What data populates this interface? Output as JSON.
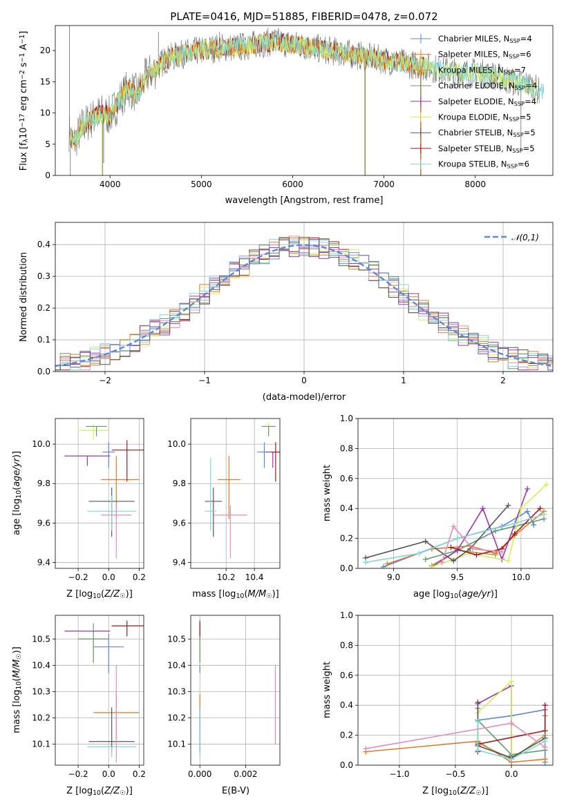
{
  "colors": {
    "chabrier_miles": "#5b87d6",
    "salpeter_miles": "#e07a22",
    "kroupa_miles": "#b0a042",
    "chabrier_elodie": "#5f9a6e",
    "salpeter_elodie": "#9b34b0",
    "kroupa_elodie": "#d6ee5a",
    "chabrier_stelib": "#5a5252",
    "salpeter_stelib": "#a31818",
    "kroupa_stelib": "#7fd6df",
    "extra_pink": "#e58bbb",
    "normal_curve": "#5b87d6"
  },
  "chart_data": [
    {
      "id": "spectrum",
      "type": "line",
      "title": "PLATE=0416, MJD=51885, FIBERID=0478, z=0.072",
      "xlabel": "wavelength [Angstrom, rest frame]",
      "ylabel": "Flux [f",
      "ylabel_parts": {
        "sub": "λ",
        "main": "10",
        "sup1": "−17",
        "rest": " erg cm",
        "sup2": "−2",
        "rest2": " s",
        "sup3": "−1",
        "rest3": " A",
        "sup4": "−1",
        "end": "]"
      },
      "xlim": [
        3400,
        8850
      ],
      "ylim": [
        0,
        24
      ],
      "xticks": [
        4000,
        5000,
        6000,
        7000,
        8000
      ],
      "yticks": [
        0,
        5,
        10,
        15,
        20
      ],
      "legend_position": "top-right",
      "legend": [
        {
          "label": "Chabrier MILES, N",
          "n": "4",
          "color_key": "chabrier_miles"
        },
        {
          "label": "Salpeter MILES, N",
          "n": "6",
          "color_key": "salpeter_miles"
        },
        {
          "label": "Kroupa MILES, N",
          "n": "7",
          "color_key": "kroupa_miles"
        },
        {
          "label": "Chabrier ELODIE, N",
          "n": "4",
          "color_key": "chabrier_elodie"
        },
        {
          "label": "Salpeter ELODIE, N",
          "n": "4",
          "color_key": "salpeter_elodie"
        },
        {
          "label": "Kroupa ELODIE, N",
          "n": "5",
          "color_key": "kroupa_elodie"
        },
        {
          "label": "Chabrier STELIB, N",
          "n": "5",
          "color_key": "chabrier_stelib"
        },
        {
          "label": "Salpeter STELIB, N",
          "n": "5",
          "color_key": "salpeter_stelib"
        },
        {
          "label": "Kroupa STELIB, N",
          "n": "6",
          "color_key": "kroupa_stelib"
        }
      ],
      "legend_sub": "SSP",
      "data_spectrum_anchors": [
        [
          3550,
          7
        ],
        [
          3600,
          5
        ],
        [
          3700,
          8
        ],
        [
          3800,
          9
        ],
        [
          3900,
          10
        ],
        [
          4000,
          9.5
        ],
        [
          4100,
          12
        ],
        [
          4200,
          14
        ],
        [
          4300,
          13
        ],
        [
          4400,
          16
        ],
        [
          4500,
          17
        ],
        [
          4600,
          18.5
        ],
        [
          4800,
          19.5
        ],
        [
          5000,
          20
        ],
        [
          5200,
          20.5
        ],
        [
          5400,
          20.5
        ],
        [
          5600,
          21
        ],
        [
          5800,
          21.5
        ],
        [
          6000,
          21
        ],
        [
          6200,
          20.5
        ],
        [
          6400,
          20
        ],
        [
          6600,
          19.5
        ],
        [
          6800,
          19
        ],
        [
          7000,
          18.5
        ],
        [
          7200,
          18
        ],
        [
          7400,
          17.5
        ],
        [
          7600,
          17
        ],
        [
          7800,
          16.5
        ],
        [
          8000,
          16.5
        ],
        [
          8200,
          16
        ],
        [
          8400,
          15
        ],
        [
          8600,
          14.5
        ],
        [
          8700,
          13.5
        ]
      ]
    },
    {
      "id": "residuals",
      "type": "bar",
      "xlabel": "(data-model)/error",
      "ylabel": "Normed distribution",
      "xlim": [
        -2.5,
        2.5
      ],
      "ylim": [
        0,
        0.47
      ],
      "xticks": [
        -2,
        -1,
        0,
        1,
        2
      ],
      "yticks": [
        0.0,
        0.1,
        0.2,
        0.3,
        0.4
      ],
      "grid": true,
      "legend_position": "top-right",
      "legend": [
        {
          "label": "𝒩(0,1)",
          "color_key": "normal_curve"
        }
      ],
      "bin_width": 0.1
    },
    {
      "id": "age_vs_Z",
      "type": "scatter",
      "xlabel": "Z [log",
      "xlabel_full": "Z [log₁₀(Z/Z☉)]",
      "ylabel_full": "age  [log₁₀(age/yr)]",
      "xlim": [
        -0.35,
        0.23
      ],
      "ylim": [
        9.37,
        10.13
      ],
      "xticks": [
        -0.2,
        0.0,
        0.2
      ],
      "yticks": [
        9.4,
        9.6,
        9.8,
        10.0
      ],
      "points": [
        {
          "x": 0.0,
          "y": 9.96,
          "xerr": 0.04,
          "yerr": [
            0.08,
            0.05
          ],
          "color_key": "chabrier_miles"
        },
        {
          "x": 0.05,
          "y": 9.82,
          "xerr": [
            0.1,
            0.15
          ],
          "yerr": [
            0.2,
            0.12
          ],
          "color_key": "salpeter_miles"
        },
        {
          "x": -0.1,
          "y": 10.07,
          "xerr": 0.1,
          "yerr": [
            0.05,
            0.03
          ],
          "color_key": "kroupa_elodie"
        },
        {
          "x": -0.08,
          "y": 10.09,
          "xerr": 0.07,
          "yerr": [
            0.05,
            0.0
          ],
          "color_key": "chabrier_elodie"
        },
        {
          "x": -0.14,
          "y": 9.94,
          "xerr": 0.15,
          "yerr": [
            0.05,
            0.0
          ],
          "color_key": "salpeter_elodie"
        },
        {
          "x": 0.02,
          "y": 9.71,
          "xerr": 0.15,
          "yerr": [
            0.18,
            0.07
          ],
          "color_key": "chabrier_stelib"
        },
        {
          "x": 0.12,
          "y": 9.97,
          "xerr": [
            0.1,
            0.15
          ],
          "yerr": [
            0.16,
            0.05
          ],
          "color_key": "salpeter_stelib"
        },
        {
          "x": 0.02,
          "y": 9.66,
          "xerr": 0.16,
          "yerr": [
            0.1,
            0.08
          ],
          "color_key": "kroupa_stelib"
        },
        {
          "x": 0.05,
          "y": 9.64,
          "xerr": 0.1,
          "yerr": [
            0.22,
            0.05
          ],
          "color_key": "extra_pink"
        }
      ]
    },
    {
      "id": "age_vs_mass",
      "type": "scatter",
      "xlabel_full": "mass [log₁₀(M/M☉)]",
      "xlim": [
        9.95,
        10.58
      ],
      "ylim": [
        9.37,
        10.13
      ],
      "xticks": [
        10.2,
        10.4
      ],
      "yticks": [
        9.4,
        9.6,
        9.8,
        10.0
      ],
      "points": [
        {
          "x": 10.47,
          "y": 9.96,
          "xerr": 0.05,
          "yerr": [
            0.08,
            0.05
          ],
          "color_key": "chabrier_miles"
        },
        {
          "x": 10.22,
          "y": 9.82,
          "xerr": 0.08,
          "yerr": [
            0.2,
            0.12
          ],
          "color_key": "salpeter_miles"
        },
        {
          "x": 10.5,
          "y": 10.09,
          "xerr": 0.05,
          "yerr": [
            0.05,
            0.02
          ],
          "color_key": "kroupa_elodie"
        },
        {
          "x": 10.5,
          "y": 10.09,
          "xerr": 0.05,
          "yerr": [
            0.05,
            0.0
          ],
          "color_key": "chabrier_elodie"
        },
        {
          "x": 10.53,
          "y": 9.96,
          "xerr": 0.05,
          "yerr": [
            0.08,
            0.0
          ],
          "color_key": "salpeter_elodie"
        },
        {
          "x": 10.11,
          "y": 9.71,
          "xerr": 0.06,
          "yerr": [
            0.18,
            0.07
          ],
          "color_key": "chabrier_stelib"
        },
        {
          "x": 10.55,
          "y": 9.96,
          "xerr": 0.03,
          "yerr": [
            0.15,
            0.05
          ],
          "color_key": "salpeter_stelib"
        },
        {
          "x": 10.09,
          "y": 9.66,
          "xerr": 0.04,
          "yerr": [
            0.1,
            0.27
          ],
          "color_key": "kroupa_stelib"
        },
        {
          "x": 10.23,
          "y": 9.64,
          "xerr": 0.12,
          "yerr": [
            0.22,
            0.05
          ],
          "color_key": "extra_pink"
        }
      ]
    },
    {
      "id": "mw_vs_age",
      "type": "line",
      "xlabel_full": "age  [log₁₀(age/yr)]",
      "ylabel": "mass weight",
      "xlim": [
        8.72,
        10.25
      ],
      "ylim": [
        0,
        1
      ],
      "xticks": [
        9.0,
        9.5,
        10.0
      ],
      "yticks": [
        0.0,
        0.2,
        0.4,
        0.6,
        0.8,
        1.0
      ],
      "series": [
        {
          "color_key": "chabrier_miles",
          "x": [
            8.92,
            9.5,
            9.85,
            10.05,
            10.1
          ],
          "y": [
            0.01,
            0.2,
            0.28,
            0.38,
            0.29
          ]
        },
        {
          "color_key": "salpeter_miles",
          "x": [
            8.95,
            9.3,
            9.6,
            9.8,
            9.95,
            10.18
          ],
          "y": [
            0.03,
            0.13,
            0.15,
            0.1,
            0.22,
            0.38
          ]
        },
        {
          "color_key": "kroupa_miles",
          "x": [
            9.3,
            9.5,
            9.8
          ],
          "y": [
            0.02,
            0.12,
            0.09
          ]
        },
        {
          "color_key": "chabrier_elodie",
          "x": [
            9.25,
            9.5,
            9.8,
            9.95,
            10.18
          ],
          "y": [
            0.06,
            0.12,
            0.25,
            0.28,
            0.33
          ]
        },
        {
          "color_key": "salpeter_elodie",
          "x": [
            9.3,
            9.5,
            9.7,
            9.85,
            10.05
          ],
          "y": [
            0.01,
            0.12,
            0.4,
            0.06,
            0.53
          ]
        },
        {
          "color_key": "kroupa_elodie",
          "x": [
            9.3,
            9.6,
            9.9,
            10.0,
            10.2
          ],
          "y": [
            0.01,
            0.1,
            0.05,
            0.4,
            0.56
          ]
        },
        {
          "color_key": "chabrier_stelib",
          "x": [
            8.78,
            9.25,
            9.47,
            9.6,
            9.9
          ],
          "y": [
            0.07,
            0.18,
            0.05,
            0.13,
            0.42
          ]
        },
        {
          "color_key": "salpeter_stelib",
          "x": [
            9.45,
            9.65,
            9.85,
            9.95,
            10.15
          ],
          "y": [
            0.14,
            0.09,
            0.13,
            0.23,
            0.4
          ]
        },
        {
          "color_key": "kroupa_stelib",
          "x": [
            8.78,
            9.2,
            9.5,
            9.95,
            10.18
          ],
          "y": [
            0.04,
            0.1,
            0.2,
            0.3,
            0.36
          ]
        },
        {
          "color_key": "extra_pink",
          "x": [
            9.38,
            9.47,
            9.62,
            9.85
          ],
          "y": [
            0.04,
            0.28,
            0.13,
            0.11
          ]
        }
      ]
    },
    {
      "id": "mass_vs_Z",
      "type": "scatter",
      "xlabel_full": "Z [log₁₀(Z/Z☉)]",
      "ylabel_full": "mass [log₁₀(M/M☉)]",
      "xlim": [
        -0.35,
        0.23
      ],
      "ylim": [
        10.02,
        10.59
      ],
      "xticks": [
        -0.2,
        0.0,
        0.2
      ],
      "yticks": [
        10.1,
        10.2,
        10.3,
        10.4,
        10.5
      ],
      "points": [
        {
          "x": 0.0,
          "y": 10.47,
          "xerr": 0.1,
          "yerr": [
            0.1,
            0.05
          ],
          "color_key": "chabrier_miles"
        },
        {
          "x": 0.05,
          "y": 10.22,
          "xerr": [
            0.15,
            0.15
          ],
          "yerr": [
            0.1,
            0.07
          ],
          "color_key": "salpeter_miles"
        },
        {
          "x": -0.1,
          "y": 10.5,
          "xerr": 0.1,
          "yerr": [
            0.1,
            0.0
          ],
          "color_key": "kroupa_elodie"
        },
        {
          "x": -0.1,
          "y": 10.5,
          "xerr": 0.1,
          "yerr": [
            0.09,
            0.06
          ],
          "color_key": "chabrier_elodie"
        },
        {
          "x": -0.14,
          "y": 10.53,
          "xerr": 0.15,
          "yerr": [
            0.0,
            0.0
          ],
          "color_key": "salpeter_elodie"
        },
        {
          "x": 0.02,
          "y": 10.11,
          "xerr": 0.15,
          "yerr": [
            0.04,
            0.13
          ],
          "color_key": "chabrier_stelib"
        },
        {
          "x": 0.12,
          "y": 10.55,
          "xerr": [
            0.1,
            0.15
          ],
          "yerr": [
            0.04,
            0.02
          ],
          "color_key": "salpeter_stelib"
        },
        {
          "x": 0.02,
          "y": 10.09,
          "xerr": 0.16,
          "yerr": [
            0.04,
            0.0
          ],
          "color_key": "kroupa_stelib"
        },
        {
          "x": 0.05,
          "y": 10.23,
          "xerr": 0.0,
          "yerr": [
            0.2,
            0.17
          ],
          "color_key": "extra_pink"
        }
      ]
    },
    {
      "id": "mass_vs_ebv",
      "type": "scatter",
      "xlabel": "E(B-V)",
      "xlim": [
        -0.0004,
        0.0035
      ],
      "ylim": [
        10.02,
        10.59
      ],
      "xticks": [
        0.0,
        0.002
      ],
      "xtick_labels": [
        "0.000",
        "0.002"
      ],
      "yticks": [
        10.1,
        10.2,
        10.3,
        10.4,
        10.5
      ],
      "points": [
        {
          "x": 0.0,
          "y": 10.47,
          "yerr": [
            0.1,
            0.05
          ],
          "color_key": "chabrier_miles"
        },
        {
          "x": 0.0,
          "y": 10.22,
          "yerr": [
            0.1,
            0.07
          ],
          "color_key": "salpeter_miles"
        },
        {
          "x": 0.0,
          "y": 10.5,
          "yerr": [
            0.1,
            0.0
          ],
          "color_key": "kroupa_elodie"
        },
        {
          "x": 0.0,
          "y": 10.5,
          "yerr": [
            0.09,
            0.06
          ],
          "color_key": "chabrier_elodie"
        },
        {
          "x": 0.0,
          "y": 10.11,
          "yerr": [
            0.04,
            0.13
          ],
          "color_key": "chabrier_stelib"
        },
        {
          "x": 0.0,
          "y": 10.55,
          "yerr": [
            0.04,
            0.02
          ],
          "color_key": "salpeter_stelib"
        },
        {
          "x": 0.0,
          "y": 10.09,
          "yerr": [
            0.04,
            0.15
          ],
          "color_key": "kroupa_stelib"
        },
        {
          "x": 0.0033,
          "y": 10.25,
          "yerr": [
            0.15,
            0.15
          ],
          "color_key": "extra_pink"
        }
      ]
    },
    {
      "id": "mw_vs_Z",
      "type": "line",
      "xlabel_full": "Z [log₁₀(Z/Z☉)]",
      "ylabel": "mass weight",
      "xlim": [
        -1.37,
        0.37
      ],
      "ylim": [
        0,
        1
      ],
      "xticks": [
        -1.0,
        -0.5,
        0.0
      ],
      "yticks": [
        0.0,
        0.2,
        0.4,
        0.6,
        0.8,
        1.0
      ],
      "series": [
        {
          "color_key": "chabrier_miles",
          "x": [
            -0.3,
            0.0,
            0.3,
            0.3
          ],
          "y": [
            0.3,
            0.33,
            0.37,
            0.02
          ]
        },
        {
          "color_key": "salpeter_miles",
          "x": [
            -1.3,
            -0.3,
            0.0,
            0.3
          ],
          "y": [
            0.09,
            0.16,
            0.02,
            0.04
          ]
        },
        {
          "color_key": "kroupa_miles",
          "x": [
            -0.3,
            0.0,
            0.3
          ],
          "y": [
            0.15,
            0.04,
            0.2
          ]
        },
        {
          "color_key": "chabrier_elodie",
          "x": [
            -0.3,
            -0.3,
            0.0,
            0.3,
            0.3
          ],
          "y": [
            0.38,
            0.3,
            0.07,
            0.1,
            0.33
          ]
        },
        {
          "color_key": "salpeter_elodie",
          "x": [
            -0.3,
            0.0,
            0.0
          ],
          "y": [
            0.41,
            0.53,
            0.06
          ]
        },
        {
          "color_key": "kroupa_elodie",
          "x": [
            -0.3,
            -0.3,
            0.0,
            0.0
          ],
          "y": [
            0.2,
            0.35,
            0.56,
            0.05
          ]
        },
        {
          "color_key": "chabrier_stelib",
          "x": [
            -0.3,
            -0.3,
            0.0,
            0.3
          ],
          "y": [
            0.42,
            0.13,
            0.05,
            0.18
          ]
        },
        {
          "color_key": "salpeter_stelib",
          "x": [
            -0.3,
            -0.3,
            0.3,
            0.3
          ],
          "y": [
            0.09,
            0.14,
            0.23,
            0.4
          ]
        },
        {
          "color_key": "kroupa_stelib",
          "x": [
            -0.3,
            -0.3,
            0.0,
            0.3
          ],
          "y": [
            0.29,
            0.1,
            0.04,
            0.16
          ]
        },
        {
          "color_key": "extra_pink",
          "x": [
            -1.3,
            0.0,
            0.3
          ],
          "y": [
            0.11,
            0.28,
            0.12
          ]
        }
      ]
    }
  ]
}
